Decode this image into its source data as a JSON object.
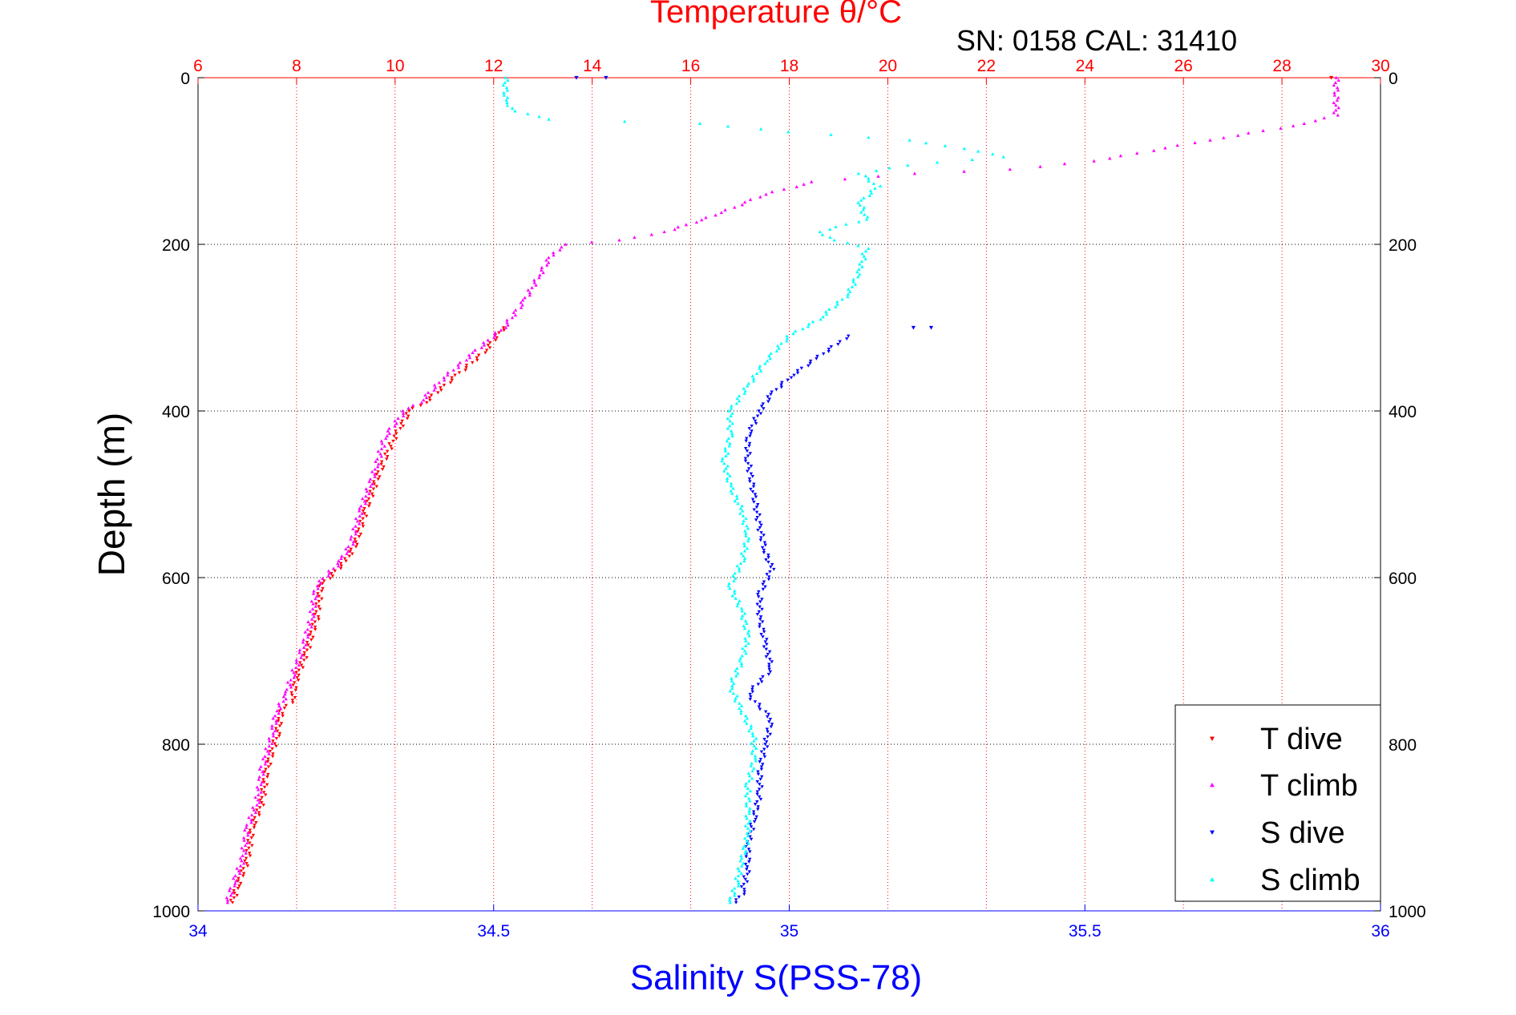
{
  "sn_cal": "SN: 0158  CAL: 31410",
  "chart_data": {
    "type": "scatter",
    "title": "",
    "ylabel": "Depth (m)",
    "ylim": [
      0,
      1000
    ],
    "y_reversed": true,
    "yticks": [
      0,
      200,
      400,
      600,
      800,
      1000
    ],
    "top_axis": {
      "label": "Temperature θ/°C",
      "range": [
        6,
        30
      ],
      "ticks": [
        6,
        8,
        10,
        12,
        14,
        16,
        18,
        20,
        22,
        24,
        26,
        28,
        30
      ],
      "color": "#ff0000",
      "grid": "dotted"
    },
    "bottom_axis": {
      "label": "Salinity S(PSS-78)",
      "range": [
        34,
        36
      ],
      "ticks": [
        "34",
        "34.5",
        "35",
        "35.5",
        "36"
      ],
      "color": "#0000ff"
    },
    "grid": true,
    "legend": "bottom-right",
    "series": [
      {
        "name": "T dive",
        "axis": "temperature",
        "color": "#ff0000",
        "marker": "triangle-down",
        "points": [
          [
            12.2,
            300
          ],
          [
            11.8,
            330
          ],
          [
            11.2,
            360
          ],
          [
            10.6,
            390
          ],
          [
            10.3,
            400
          ],
          [
            10.0,
            430
          ],
          [
            9.7,
            470
          ],
          [
            9.4,
            520
          ],
          [
            9.2,
            560
          ],
          [
            9.0,
            580
          ],
          [
            8.5,
            610
          ],
          [
            8.4,
            650
          ],
          [
            8.2,
            690
          ],
          [
            8.0,
            720
          ],
          [
            7.9,
            750
          ],
          [
            7.7,
            760
          ],
          [
            7.6,
            790
          ],
          [
            7.4,
            830
          ],
          [
            7.3,
            870
          ],
          [
            7.1,
            900
          ],
          [
            7.0,
            940
          ],
          [
            6.8,
            970
          ],
          [
            6.7,
            990
          ]
        ]
      },
      {
        "name": "T climb",
        "axis": "temperature",
        "color": "#ff00ff",
        "marker": "triangle-up",
        "points": [
          [
            29.1,
            0
          ],
          [
            29.1,
            45
          ],
          [
            28.5,
            55
          ],
          [
            26.5,
            75
          ],
          [
            24.2,
            100
          ],
          [
            22.5,
            110
          ],
          [
            20.5,
            115
          ],
          [
            18.5,
            125
          ],
          [
            17.5,
            140
          ],
          [
            16.5,
            165
          ],
          [
            15.5,
            185
          ],
          [
            14.5,
            195
          ],
          [
            13.5,
            200
          ],
          [
            13.2,
            210
          ],
          [
            12.9,
            240
          ],
          [
            12.6,
            270
          ],
          [
            12.2,
            300
          ],
          [
            11.6,
            330
          ],
          [
            11.0,
            360
          ],
          [
            10.5,
            390
          ],
          [
            10.2,
            400
          ],
          [
            9.8,
            430
          ],
          [
            9.6,
            470
          ],
          [
            9.3,
            520
          ],
          [
            9.1,
            560
          ],
          [
            8.9,
            580
          ],
          [
            8.4,
            610
          ],
          [
            8.3,
            650
          ],
          [
            8.1,
            690
          ],
          [
            7.9,
            720
          ],
          [
            7.8,
            740
          ],
          [
            7.6,
            760
          ],
          [
            7.5,
            790
          ],
          [
            7.3,
            830
          ],
          [
            7.2,
            870
          ],
          [
            7.0,
            900
          ],
          [
            6.9,
            940
          ],
          [
            6.7,
            970
          ],
          [
            6.6,
            990
          ]
        ]
      },
      {
        "name": "S dive",
        "axis": "salinity",
        "color": "#0000ff",
        "marker": "triangle-down",
        "points": [
          [
            35.1,
            310
          ],
          [
            35.08,
            320
          ],
          [
            35.04,
            340
          ],
          [
            35.0,
            360
          ],
          [
            34.97,
            380
          ],
          [
            34.95,
            400
          ],
          [
            34.93,
            430
          ],
          [
            34.93,
            460
          ],
          [
            34.94,
            500
          ],
          [
            34.95,
            540
          ],
          [
            34.96,
            570
          ],
          [
            34.97,
            590
          ],
          [
            34.95,
            620
          ],
          [
            34.95,
            650
          ],
          [
            34.96,
            680
          ],
          [
            34.97,
            710
          ],
          [
            34.93,
            740
          ],
          [
            34.97,
            770
          ],
          [
            34.96,
            800
          ],
          [
            34.95,
            830
          ],
          [
            34.95,
            860
          ],
          [
            34.94,
            890
          ],
          [
            34.93,
            920
          ],
          [
            34.93,
            950
          ],
          [
            34.92,
            980
          ],
          [
            34.91,
            990
          ]
        ]
      },
      {
        "name": "S climb",
        "axis": "salinity",
        "color": "#00ffff",
        "marker": "triangle-up",
        "points": [
          [
            34.52,
            0
          ],
          [
            34.52,
            30
          ],
          [
            34.54,
            40
          ],
          [
            34.59,
            50
          ],
          [
            34.85,
            55
          ],
          [
            35.0,
            65
          ],
          [
            35.2,
            75
          ],
          [
            35.3,
            85
          ],
          [
            35.36,
            95
          ],
          [
            35.2,
            105
          ],
          [
            35.12,
            115
          ],
          [
            35.15,
            130
          ],
          [
            35.12,
            150
          ],
          [
            35.13,
            170
          ],
          [
            35.05,
            185
          ],
          [
            35.08,
            195
          ],
          [
            35.13,
            205
          ],
          [
            35.12,
            230
          ],
          [
            35.1,
            260
          ],
          [
            35.05,
            290
          ],
          [
            35.0,
            310
          ],
          [
            34.96,
            340
          ],
          [
            34.93,
            370
          ],
          [
            34.9,
            400
          ],
          [
            34.9,
            430
          ],
          [
            34.89,
            460
          ],
          [
            34.9,
            490
          ],
          [
            34.92,
            520
          ],
          [
            34.93,
            550
          ],
          [
            34.92,
            580
          ],
          [
            34.9,
            610
          ],
          [
            34.92,
            640
          ],
          [
            34.93,
            670
          ],
          [
            34.92,
            700
          ],
          [
            34.9,
            730
          ],
          [
            34.92,
            760
          ],
          [
            34.94,
            790
          ],
          [
            34.94,
            820
          ],
          [
            34.93,
            850
          ],
          [
            34.93,
            880
          ],
          [
            34.93,
            910
          ],
          [
            34.92,
            940
          ],
          [
            34.91,
            970
          ],
          [
            34.9,
            990
          ]
        ]
      }
    ],
    "stray_points": [
      {
        "series": "S dive",
        "axis": "salinity",
        "x": 34.64,
        "y": 0
      },
      {
        "series": "S dive",
        "axis": "salinity",
        "x": 34.69,
        "y": 0
      },
      {
        "series": "S dive",
        "axis": "salinity",
        "x": 35.21,
        "y": 300
      },
      {
        "series": "S dive",
        "axis": "salinity",
        "x": 35.24,
        "y": 300
      },
      {
        "series": "T dive",
        "axis": "temperature",
        "x": 29.0,
        "y": 0
      }
    ]
  }
}
